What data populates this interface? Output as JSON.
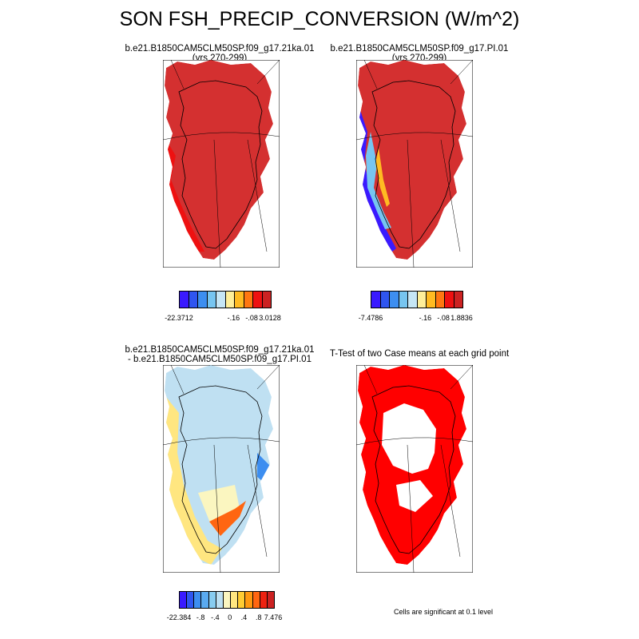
{
  "title": "SON FSH_PRECIP_CONVERSION (W/m^2)",
  "panels": [
    {
      "id": "case1",
      "title_line1": "b.e21.B1850CAM5CLM50SP.f09_g17.21ka.01",
      "title_line2": "(yrs 270-299)"
    },
    {
      "id": "case2",
      "title_line1": "b.e21.B1850CAM5CLM50SP.f09_g17.PI.01",
      "title_line2": "(yrs 270-299)"
    },
    {
      "id": "diff",
      "title_line1": "b.e21.B1850CAM5CLM50SP.f09_g17.21ka.01",
      "title_line2": "- b.e21.B1850CAM5CLM50SP.f09_g17.PI.01"
    },
    {
      "id": "ttest",
      "title_line1": "T-Test of two Case means at each grid point",
      "title_line2": ""
    }
  ],
  "colorbars": {
    "case1": {
      "colors": [
        "#3a1aff",
        "#2f55f0",
        "#3d8ef0",
        "#77c5f0",
        "#c6e6f5",
        "#ffef99",
        "#ffbb22",
        "#ff7711",
        "#ee1111",
        "#cc2222"
      ],
      "labels": [
        "-22.3712",
        "-.16",
        "-.08",
        "3.0128"
      ]
    },
    "case2": {
      "colors": [
        "#3a1aff",
        "#2f55f0",
        "#3d8ef0",
        "#77c5f0",
        "#c6e6f5",
        "#ffef99",
        "#ffbb22",
        "#ff7711",
        "#ee1111",
        "#cc2222"
      ],
      "labels": [
        "-7.4786",
        "-.16",
        "-.08",
        "1.8836"
      ]
    },
    "diff": {
      "colors": [
        "#3a1aff",
        "#2f55f0",
        "#3d8ef0",
        "#5aaaf0",
        "#88ccf0",
        "#bde0f2",
        "#fbf6c0",
        "#ffe680",
        "#ffcc33",
        "#ff9911",
        "#ff6611",
        "#ee2211",
        "#cc2222"
      ],
      "labels": [
        "-22.384",
        "-.8",
        "-.4",
        "0",
        ".4",
        ".8",
        "7.476"
      ]
    }
  },
  "footnote": "Cells are significant at 0.1 level",
  "map_colors": {
    "case1_fill": "#d43030",
    "case1_margin": "#ee1111",
    "case2_fill": "#d43030",
    "case2_margin": "#ee1111",
    "diff_fill": "#bfe0f2",
    "diff_margin": "#ffe680",
    "ttest_fill": "#ff0000",
    "negative": "#3a1aff",
    "coast": "#000000"
  }
}
